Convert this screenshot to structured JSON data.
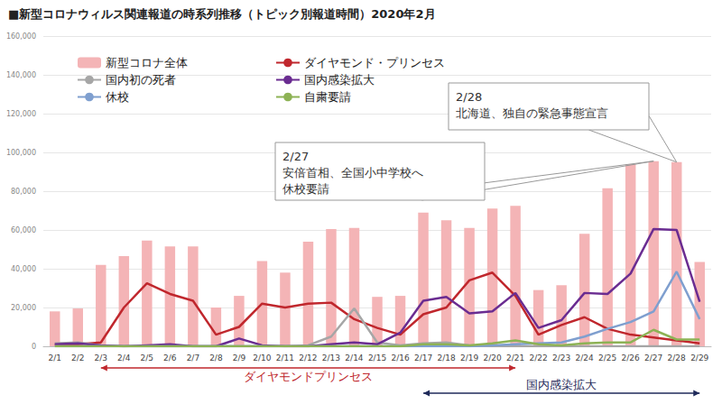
{
  "chart_data": {
    "type": "bar",
    "title": "■新型コロナウィルス関連報道の時系列推移（トピック別報道時間）2020年2月",
    "categories": [
      "2/1",
      "2/2",
      "2/3",
      "2/4",
      "2/5",
      "2/6",
      "2/7",
      "2/8",
      "2/9",
      "2/10",
      "2/11",
      "2/12",
      "2/13",
      "2/14",
      "2/15",
      "2/16",
      "2/17",
      "2/18",
      "2/19",
      "2/20",
      "2/21",
      "2/22",
      "2/23",
      "2/24",
      "2/25",
      "2/26",
      "2/27",
      "2/28",
      "2/29"
    ],
    "series": [
      {
        "name": "新型コロナ全体",
        "type": "bar",
        "color": "#f4b4b6",
        "values": [
          18000,
          19500,
          42000,
          46500,
          54500,
          51500,
          51500,
          20000,
          26000,
          44000,
          38000,
          54000,
          60500,
          61000,
          25500,
          26000,
          69000,
          65000,
          61000,
          71000,
          72500,
          29000,
          31500,
          58000,
          81500,
          94000,
          95500,
          95000,
          43500
        ]
      },
      {
        "name": "ダイヤモンド・プリンセス",
        "type": "line",
        "color": "#c0272d",
        "values": [
          1000,
          1000,
          2000,
          20000,
          32500,
          27000,
          23500,
          6000,
          10000,
          22000,
          20000,
          22000,
          22500,
          14000,
          9500,
          6000,
          16500,
          20000,
          34000,
          38000,
          26000,
          6000,
          11000,
          15000,
          9000,
          6000,
          4500,
          3000,
          1500
        ]
      },
      {
        "name": "国内初の死者",
        "type": "line",
        "color": "#a6a6a6",
        "values": [
          1500,
          2000,
          500,
          0,
          0,
          0,
          0,
          0,
          0,
          0,
          0,
          500,
          5000,
          19500,
          2000,
          500,
          1500,
          2000,
          500,
          0,
          0,
          0,
          0,
          0,
          0,
          0,
          0,
          0,
          0
        ]
      },
      {
        "name": "国内感染拡大",
        "type": "line",
        "color": "#6a2c91",
        "values": [
          1000,
          1500,
          500,
          0,
          500,
          1000,
          0,
          0,
          4000,
          500,
          0,
          0,
          1000,
          2000,
          1000,
          7000,
          23500,
          25500,
          17000,
          18000,
          27500,
          9500,
          13500,
          27500,
          27000,
          37500,
          60500,
          60000,
          23000
        ]
      },
      {
        "name": "休校",
        "type": "line",
        "color": "#7f9fcf",
        "values": [
          0,
          0,
          0,
          0,
          0,
          0,
          0,
          0,
          0,
          0,
          0,
          0,
          0,
          0,
          0,
          0,
          0,
          0,
          0,
          500,
          1000,
          1500,
          2000,
          5000,
          9000,
          12500,
          18000,
          38500,
          14000
        ]
      },
      {
        "name": "自粛要請",
        "type": "line",
        "color": "#8db255",
        "values": [
          0,
          0,
          0,
          0,
          0,
          0,
          0,
          0,
          0,
          0,
          0,
          0,
          0,
          0,
          0,
          0,
          1000,
          1000,
          500,
          1500,
          3000,
          1000,
          500,
          1500,
          2000,
          2000,
          8500,
          3500,
          3500
        ]
      }
    ],
    "ylim": [
      0,
      160000
    ],
    "yticks": [
      0,
      20000,
      40000,
      60000,
      80000,
      100000,
      120000,
      140000,
      160000
    ],
    "grid": true,
    "legend": "upper left",
    "annotations": [
      {
        "text": "2/28\n北海道、独自の緊急事態宣言",
        "x": "2/28"
      },
      {
        "text": "2/27\n安倍首相、全国小中学校へ\n休校要請",
        "x": "2/27"
      }
    ],
    "ranges": [
      {
        "label": "ダイヤモンドプリンセス",
        "start": "2/3",
        "end": "2/21",
        "color": "#c0272d"
      },
      {
        "label": "国内感染拡大",
        "start": "2/17",
        "end": "2/29",
        "color": "#1f2a5a"
      }
    ]
  }
}
